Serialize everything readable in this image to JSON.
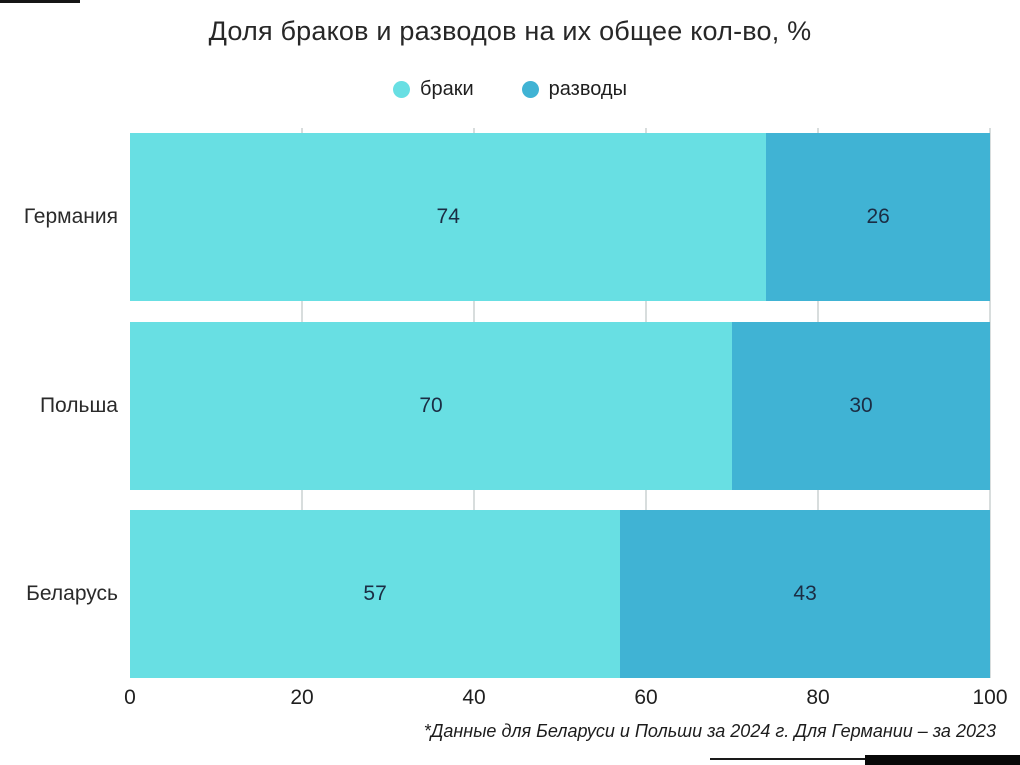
{
  "title": "Доля браков и разводов на их общее кол-во, %",
  "footnote": "*Данные для Беларуси и Польши за 2024 г. Для Германии – за 2023",
  "colors": {
    "marriages": "#68DFE3",
    "divorces": "#40B3D4",
    "value_label": "#1B2D44",
    "gridline": "#D8DDDD",
    "text": "#2A2A2A"
  },
  "chart_data": {
    "type": "bar",
    "orientation": "horizontal",
    "stacked": true,
    "title": "Доля браков и разводов на их общее кол-во, %",
    "categories": [
      "Германия",
      "Польша",
      "Беларусь"
    ],
    "series": [
      {
        "name": "браки",
        "values": [
          74,
          70,
          57
        ],
        "color": "#68DFE3"
      },
      {
        "name": "разводы",
        "values": [
          26,
          30,
          43
        ],
        "color": "#40B3D4"
      }
    ],
    "xlabel": "",
    "ylabel": "",
    "xlim": [
      0,
      100
    ],
    "xticks": [
      0,
      20,
      40,
      60,
      80,
      100
    ],
    "grid": "vertical, visible in gaps between bars",
    "legend_position": "top-center",
    "value_labels": "centered inside segments",
    "footnote": "*Данные для Беларуси и Польши за 2024 г. Для Германии – за 2023"
  }
}
